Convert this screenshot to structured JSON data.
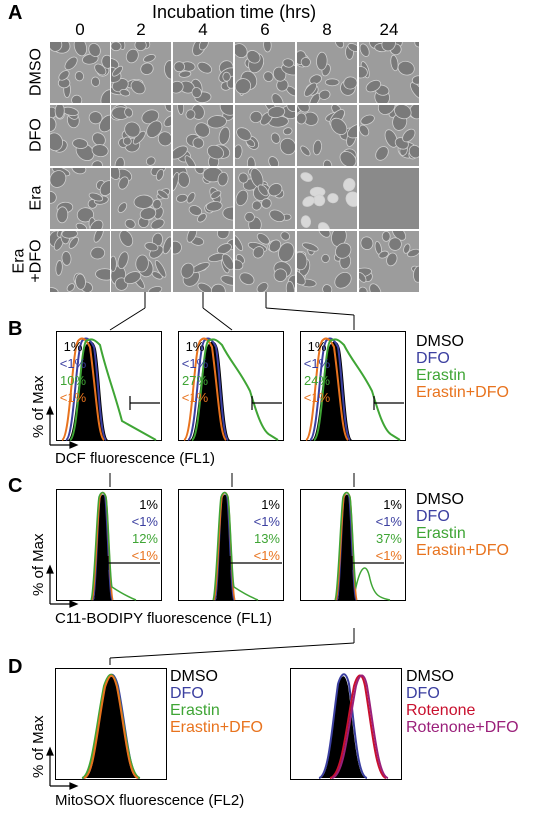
{
  "panelA": {
    "letter": "A",
    "header": "Incubation time (hrs)",
    "time_points": [
      "0",
      "2",
      "4",
      "6",
      "8",
      "24"
    ],
    "conditions": [
      "DMSO",
      "DFO",
      "Era",
      "Era\n+DFO"
    ]
  },
  "panelB": {
    "letter": "B",
    "xlabel": "DCF fluorescence (FL1)",
    "ylabel": "% of Max",
    "plots": [
      {
        "dmso": "1%",
        "dfo": "<1%",
        "erastin": "10%",
        "erastin_dfo": "<1%"
      },
      {
        "dmso": "1%",
        "dfo": "<1%",
        "erastin": "27%",
        "erastin_dfo": "<1%"
      },
      {
        "dmso": "1%",
        "dfo": "<1%",
        "erastin": "24%",
        "erastin_dfo": "<1%"
      }
    ],
    "legend": [
      "DMSO",
      "DFO",
      "Erastin",
      "Erastin+DFO"
    ]
  },
  "panelC": {
    "letter": "C",
    "xlabel": "C11-BODIPY fluorescence (FL1)",
    "ylabel": "% of Max",
    "plots": [
      {
        "dmso": "1%",
        "dfo": "<1%",
        "erastin": "12%",
        "erastin_dfo": "<1%"
      },
      {
        "dmso": "1%",
        "dfo": "<1%",
        "erastin": "13%",
        "erastin_dfo": "<1%"
      },
      {
        "dmso": "1%",
        "dfo": "<1%",
        "erastin": "37%",
        "erastin_dfo": "<1%"
      }
    ],
    "legend": [
      "DMSO",
      "DFO",
      "Erastin",
      "Erastin+DFO"
    ]
  },
  "panelD": {
    "letter": "D",
    "xlabel": "MitoSOX fluorescence (FL2)",
    "ylabel": "% of Max",
    "legend_left": [
      "DMSO",
      "DFO",
      "Erastin",
      "Erastin+DFO"
    ],
    "legend_right": [
      "DMSO",
      "DFO",
      "Rotenone",
      "Rotenone+DFO"
    ]
  },
  "colors": {
    "dmso": "#000000",
    "dfo": "#3b3fa0",
    "erastin": "#3fa535",
    "erastin_dfo": "#e8731e",
    "rotenone": "#c8102e",
    "rotenone_dfo": "#9a1f7a"
  }
}
